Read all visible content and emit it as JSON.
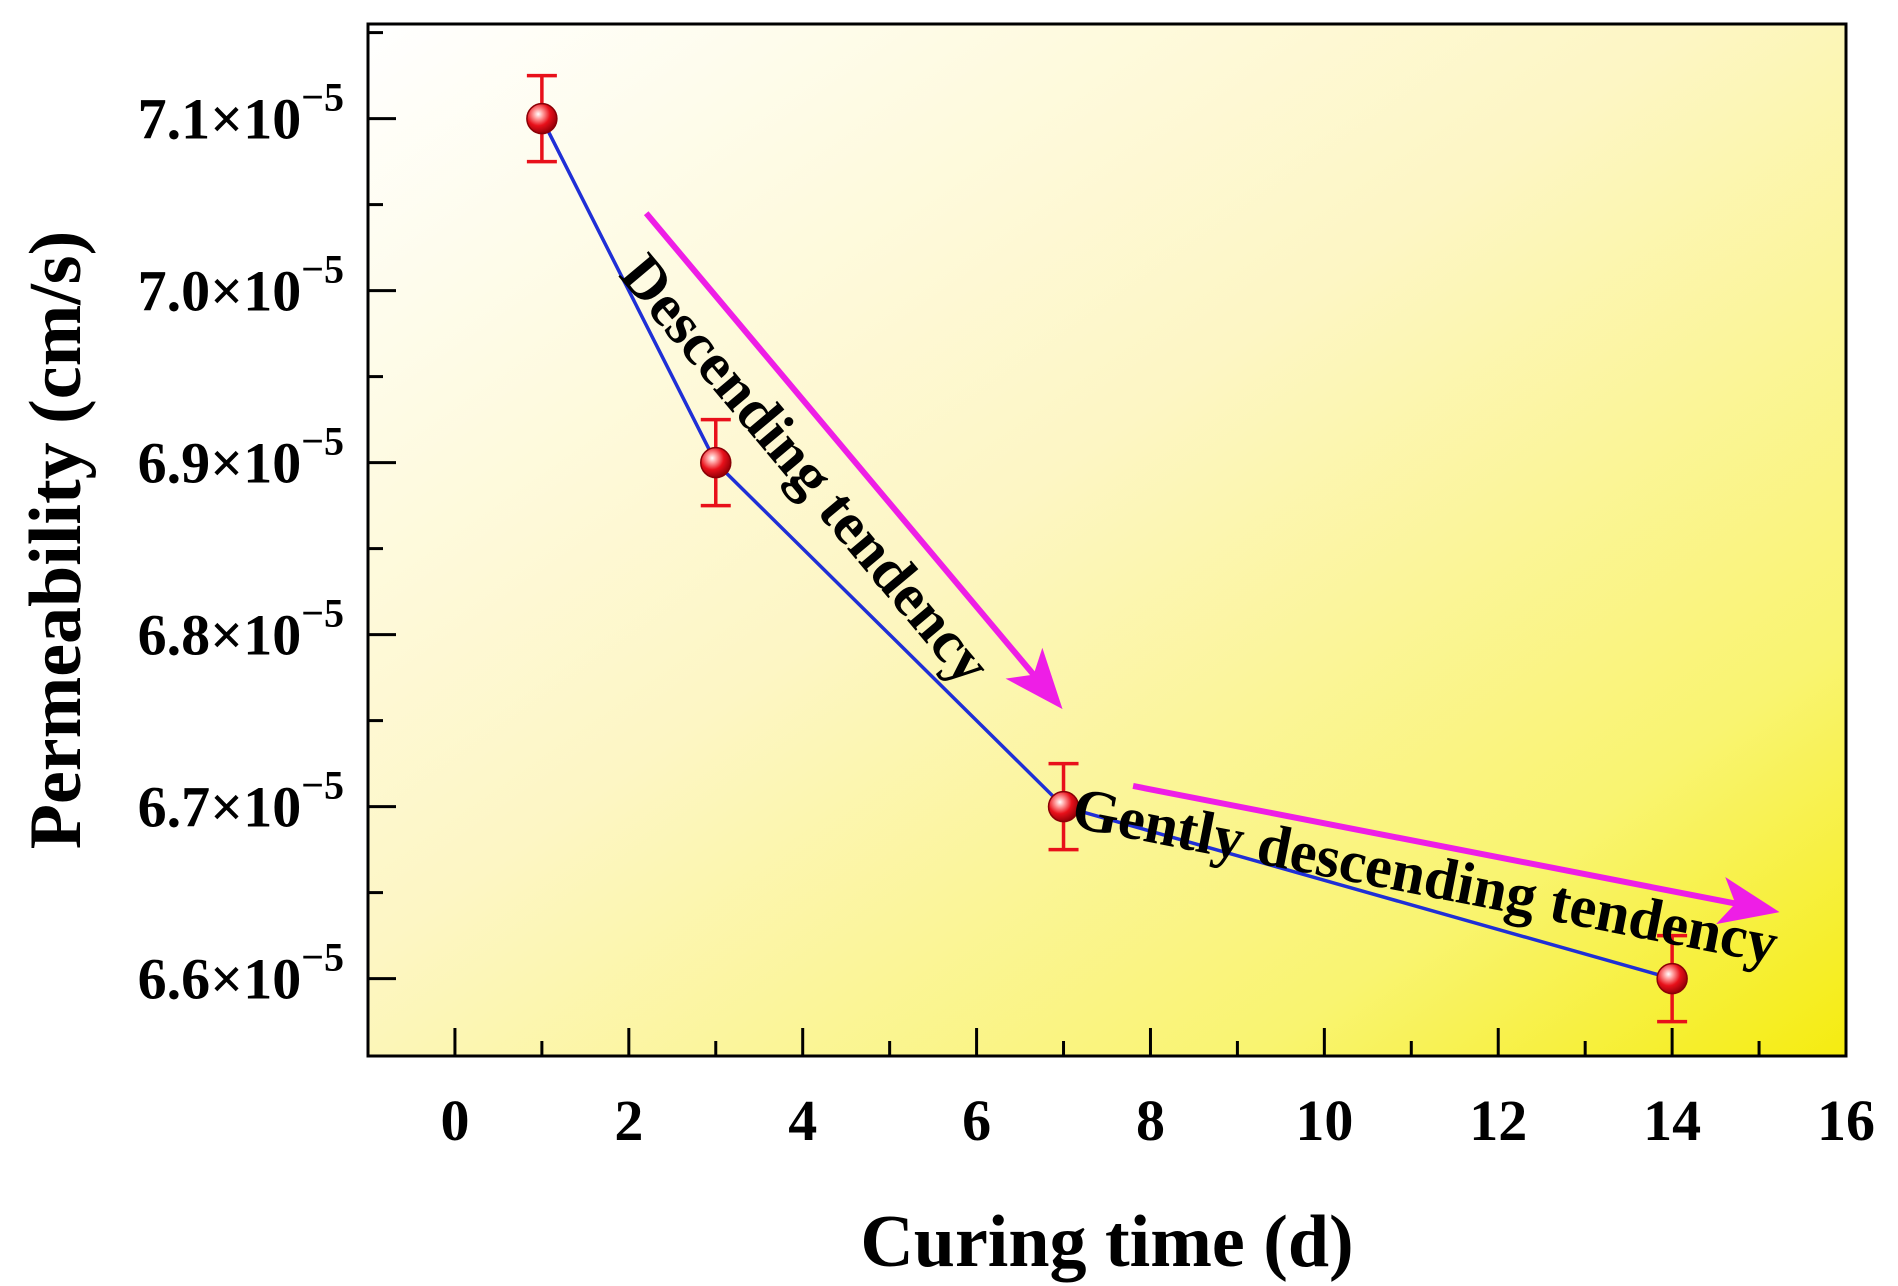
{
  "chart_data": {
    "type": "line",
    "title": "",
    "xlabel": "Curing time (d)",
    "ylabel": "Permeability (cm/s)",
    "xlim": [
      -1,
      16
    ],
    "ylim": [
      6.555,
      7.155
    ],
    "y_scale_exponent": "−5",
    "x_ticks": [
      0,
      2,
      4,
      6,
      8,
      10,
      12,
      14,
      16
    ],
    "x_tick_labels": [
      "0",
      "2",
      "4",
      "6",
      "8",
      "10",
      "12",
      "14",
      "16"
    ],
    "y_ticks": [
      6.6,
      6.7,
      6.8,
      6.9,
      7.0,
      7.1
    ],
    "y_tick_labels": [
      "6.6×10",
      "6.7×10",
      "6.8×10",
      "6.9×10",
      "7.0×10",
      "7.1×10"
    ],
    "series": [
      {
        "name": "Permeability",
        "x": [
          1,
          3,
          7,
          14
        ],
        "y": [
          7.1,
          6.9,
          6.7,
          6.6
        ],
        "error": [
          0.025,
          0.025,
          0.025,
          0.025
        ],
        "line_color": "#1f2fd6",
        "marker_color": "#e8101a",
        "errorbar_color": "#e8101a"
      }
    ],
    "annotations": [
      {
        "text": "Descending tendency",
        "arrow_from": [
          2.2,
          7.045
        ],
        "arrow_to": [
          6.9,
          6.762
        ]
      },
      {
        "text": "Gently descending tendency",
        "arrow_from": [
          7.8,
          6.712
        ],
        "arrow_to": [
          15.1,
          6.64
        ]
      }
    ],
    "arrow_color": "#ee1ee6",
    "background_gradient": [
      "#ffffff",
      "#fbf36a",
      "#f6ee12"
    ]
  }
}
